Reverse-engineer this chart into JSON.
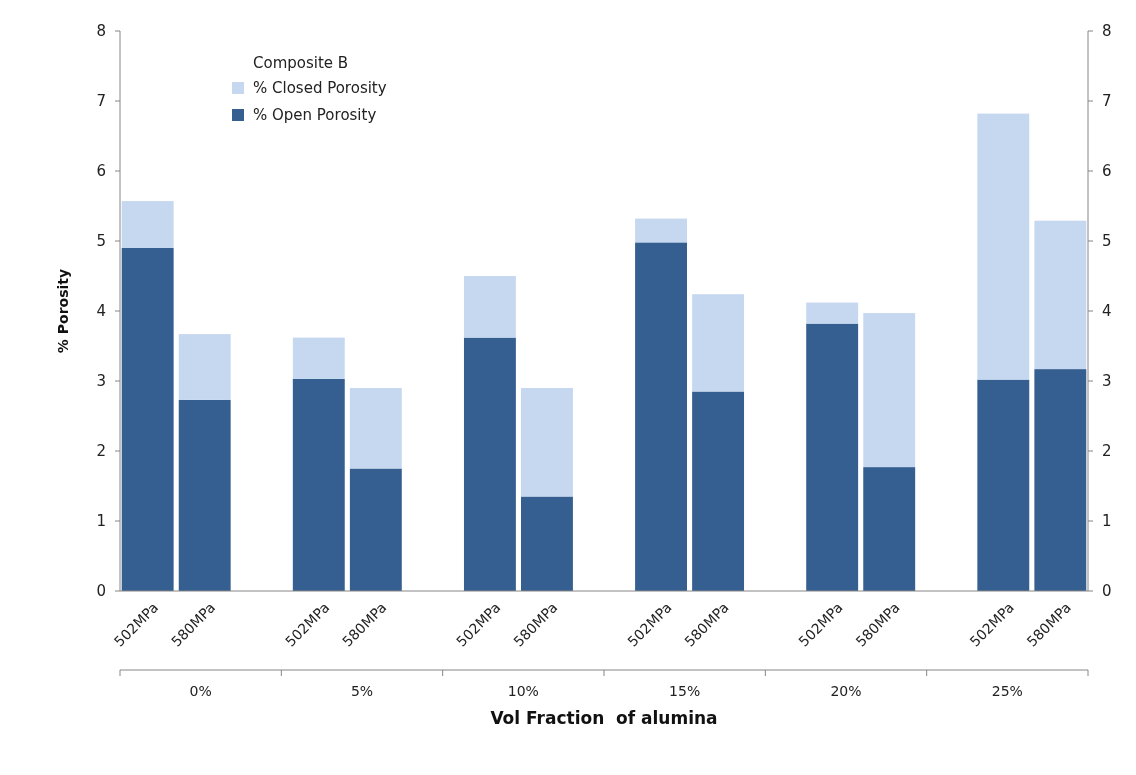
{
  "chart_data": {
    "type": "bar",
    "stacked": true,
    "xlabel": "Vol Fraction  of alumina",
    "ylabel": "% Porosity",
    "legend_title": "Composite B",
    "legend": "top left",
    "grid": false,
    "categories": [
      "502MPa",
      "580MPa",
      null,
      "502MPa",
      "580MPa",
      null,
      "502MPa",
      "580MPa",
      null,
      "502MPa",
      "580MPa",
      null,
      "502MPa",
      "580MPa",
      null,
      "502MPa",
      "580MPa"
    ],
    "series": [
      {
        "name": "% Open Porosity",
        "color": "#365f91",
        "values": [
          4.9,
          2.73,
          null,
          3.03,
          1.75,
          null,
          3.62,
          1.35,
          null,
          4.98,
          2.85,
          null,
          3.82,
          1.77,
          null,
          3.02,
          3.17
        ]
      },
      {
        "name": "% Closed Porosity",
        "color": "#c5d8f0",
        "values": [
          0.67,
          0.94,
          null,
          0.59,
          1.15,
          null,
          0.88,
          1.55,
          null,
          0.34,
          1.39,
          null,
          0.3,
          2.2,
          null,
          3.8,
          2.12
        ]
      }
    ],
    "annotations": [
      "0%",
      "5%",
      "10%",
      "15%",
      "20%",
      "25%"
    ],
    "ylim": [
      0,
      8
    ],
    "yticks": [
      0,
      1,
      2,
      3,
      4,
      5,
      6,
      7,
      8
    ],
    "y2lim": [
      0,
      8
    ],
    "y2ticks": [
      0,
      1,
      2,
      3,
      4,
      5,
      6,
      7,
      8
    ]
  }
}
